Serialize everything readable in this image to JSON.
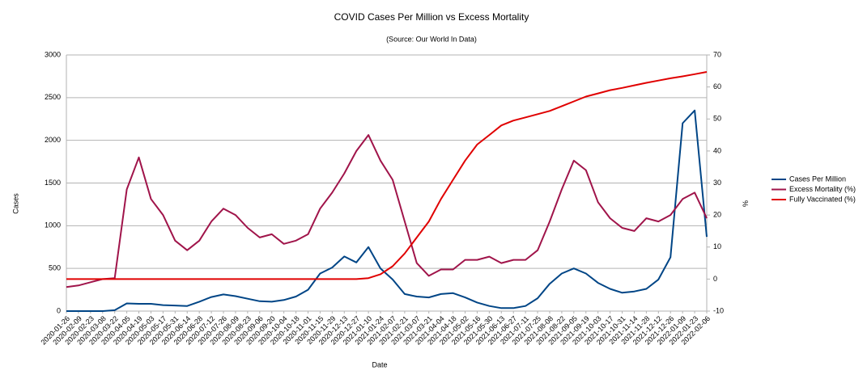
{
  "chart_data": {
    "type": "line",
    "title": "COVID Cases Per Million vs Excess Mortality",
    "subtitle": "(Source: Our World In Data)",
    "x_label": "Date",
    "y_label": "Cases",
    "y2_label": "%",
    "categories": [
      "2020-01-26",
      "2020-02-09",
      "2020-02-23",
      "2020-03-08",
      "2020-03-22",
      "2020-04-05",
      "2020-04-19",
      "2020-05-03",
      "2020-05-17",
      "2020-05-31",
      "2020-06-14",
      "2020-06-28",
      "2020-07-12",
      "2020-07-26",
      "2020-08-09",
      "2020-08-23",
      "2020-09-06",
      "2020-09-20",
      "2020-10-04",
      "2020-10-18",
      "2020-11-01",
      "2020-11-15",
      "2020-11-29",
      "2020-12-13",
      "2020-12-27",
      "2021-01-10",
      "2021-01-24",
      "2021-02-07",
      "2021-02-21",
      "2021-03-07",
      "2021-03-21",
      "2021-04-04",
      "2021-04-18",
      "2021-05-02",
      "2021-05-16",
      "2021-05-30",
      "2021-06-13",
      "2021-06-27",
      "2021-07-11",
      "2021-07-25",
      "2021-08-08",
      "2021-08-22",
      "2021-09-05",
      "2021-09-19",
      "2021-10-03",
      "2021-10-17",
      "2021-10-31",
      "2021-11-14",
      "2021-11-28",
      "2021-12-12",
      "2021-12-26",
      "2022-01-09",
      "2022-01-23",
      "2022-02-06"
    ],
    "series": [
      {
        "name": "Cases Per Million",
        "color": "#004586",
        "axis": "y",
        "values": [
          0,
          0,
          0,
          0,
          10,
          90,
          85,
          85,
          70,
          65,
          60,
          110,
          165,
          195,
          175,
          145,
          115,
          110,
          130,
          170,
          250,
          440,
          510,
          640,
          570,
          750,
          500,
          370,
          200,
          170,
          160,
          200,
          210,
          160,
          100,
          60,
          35,
          35,
          60,
          150,
          320,
          440,
          500,
          440,
          330,
          260,
          215,
          230,
          260,
          370,
          630,
          2200,
          2350,
          870
        ]
      },
      {
        "name": "Excess Mortality (%)",
        "color": "#a0144a",
        "axis": "y2",
        "values": [
          -2.5,
          -2,
          -1,
          0,
          0.3,
          28,
          38,
          25,
          20,
          12,
          9,
          12,
          18,
          22,
          20,
          16,
          13,
          14,
          11,
          12,
          14,
          22,
          27,
          33,
          40,
          45,
          37,
          31,
          18,
          5,
          1,
          3,
          3,
          6,
          6,
          7,
          5,
          6,
          6,
          9,
          18,
          28,
          37,
          34,
          24,
          19,
          16,
          15,
          19,
          18,
          20,
          25,
          27,
          19
        ]
      },
      {
        "name": "Fully Vaccinated (%)",
        "color": "#e00000",
        "axis": "y2",
        "values": [
          0,
          0,
          0,
          0,
          0,
          0,
          0,
          0,
          0,
          0,
          0,
          0,
          0,
          0,
          0,
          0,
          0,
          0,
          0,
          0,
          0,
          0,
          0,
          0,
          0,
          0.3,
          1.5,
          4,
          8,
          13,
          18,
          25,
          31,
          37,
          42,
          45,
          48,
          49.5,
          50.5,
          51.5,
          52.5,
          54,
          55.5,
          57,
          58,
          59,
          59.7,
          60.5,
          61.3,
          62,
          62.7,
          63.3,
          64,
          64.7
        ]
      }
    ],
    "ylim": [
      0,
      3000
    ],
    "yticks": [
      0,
      500,
      1000,
      1500,
      2000,
      2500,
      3000
    ],
    "y2lim": [
      -10,
      70
    ],
    "y2ticks": [
      -10,
      0,
      10,
      20,
      30,
      40,
      50,
      60,
      70
    ],
    "grid": true,
    "legend": "right"
  }
}
